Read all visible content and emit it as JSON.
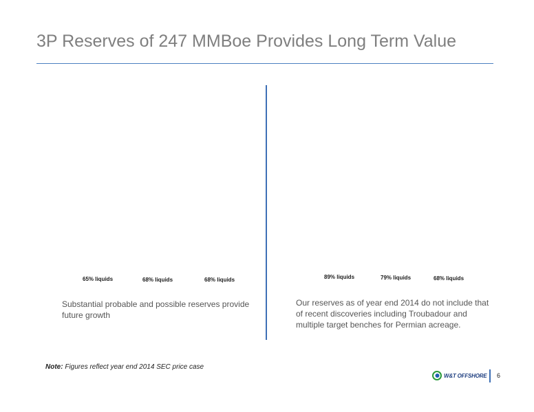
{
  "slide": {
    "title": "3P Reserves of 247 MMBoe Provides Long Term Value",
    "page_number": "6"
  },
  "left_panel": {
    "liquids_labels": [
      "65% liquids",
      "68% liquids",
      "68% liquids"
    ],
    "caption_lines": [
      "Substantial probable and possible reserves provide",
      "future growth"
    ]
  },
  "right_panel": {
    "liquids_labels": [
      "89% liquids",
      "79% liquids",
      "68% liquids"
    ],
    "caption_lines": [
      "Our reserves as of year end 2014 do not include that",
      "of recent discoveries including Troubadour and",
      "multiple target benches for Permian acreage."
    ]
  },
  "note": {
    "label": "Note:",
    "text": "Figures reflect year end 2014 SEC price case"
  },
  "logo": {
    "text": "W&T OFFSHORE",
    "colors": {
      "outer": "#2a9a3a",
      "inner": "#1f5fb0"
    }
  }
}
